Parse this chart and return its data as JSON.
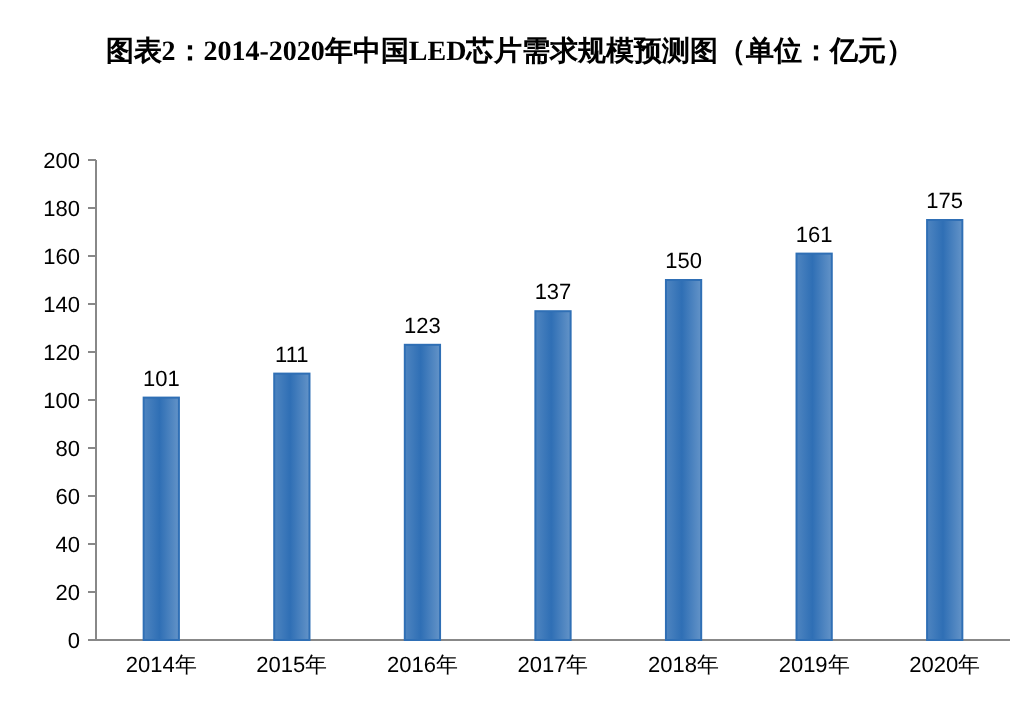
{
  "chart_data": {
    "type": "bar",
    "title": "图表2：2014-2020年中国LED芯片需求规模预测图（单位：亿元）",
    "categories": [
      "2014年",
      "2015年",
      "2016年",
      "2017年",
      "2018年",
      "2019年",
      "2020年"
    ],
    "values": [
      101,
      111,
      123,
      137,
      150,
      161,
      175
    ],
    "color": "#2f6fb5",
    "ylim": [
      0,
      200
    ],
    "yticks": [
      0,
      20,
      40,
      60,
      80,
      100,
      120,
      140,
      160,
      180,
      200
    ],
    "data_labels": true
  }
}
